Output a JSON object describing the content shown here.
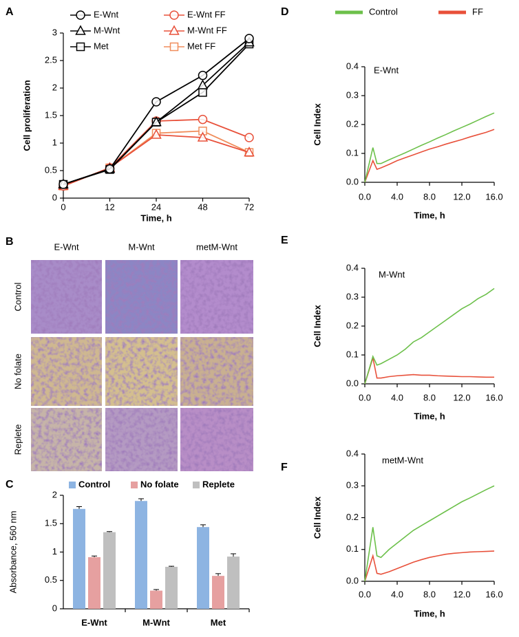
{
  "chart_data": [
    {
      "type": "line",
      "label": "A",
      "x_label": "Time, h",
      "y_label": "Cell proliferation",
      "categories": [
        "0",
        "12",
        "24",
        "48",
        "72"
      ],
      "ylim": [
        0,
        3
      ],
      "yticks": [
        0,
        0.5,
        1,
        1.5,
        2,
        2.5,
        3
      ],
      "legend": "top",
      "series": [
        {
          "name": "E-Wnt",
          "color": "#000000",
          "marker": "circle",
          "values": [
            0.25,
            0.53,
            1.75,
            2.23,
            2.9
          ]
        },
        {
          "name": "M-Wnt",
          "color": "#000000",
          "marker": "triangle",
          "values": [
            0.25,
            0.53,
            1.38,
            2.05,
            2.83
          ]
        },
        {
          "name": "Met",
          "color": "#000000",
          "marker": "square",
          "values": [
            0.25,
            0.52,
            1.38,
            1.92,
            2.8
          ]
        },
        {
          "name": "E-Wnt FF",
          "color": "#e8503a",
          "marker": "circle",
          "values": [
            0.22,
            0.55,
            1.4,
            1.43,
            1.1
          ]
        },
        {
          "name": "M-Wnt FF",
          "color": "#e8503a",
          "marker": "triangle",
          "values": [
            0.22,
            0.55,
            1.15,
            1.1,
            0.83
          ]
        },
        {
          "name": "Met FF",
          "color": "#f08c5a",
          "marker": "square",
          "values": [
            0.22,
            0.55,
            1.18,
            1.22,
            0.83
          ]
        }
      ]
    },
    {
      "type": "bar",
      "label": "C",
      "y_label": "Absorbance, 560 nm",
      "categories": [
        "E-Wnt",
        "M-Wnt",
        "Met"
      ],
      "ylim": [
        0,
        2
      ],
      "yticks": [
        0,
        0.5,
        1,
        1.5,
        2
      ],
      "legend": "top",
      "series": [
        {
          "name": "Control",
          "color": "#8db4e2",
          "values": [
            1.76,
            1.9,
            1.44
          ],
          "errors": [
            0.04,
            0.04,
            0.04
          ]
        },
        {
          "name": "No folate",
          "color": "#e6a0a0",
          "values": [
            0.91,
            0.32,
            0.58
          ],
          "errors": [
            0.02,
            0.02,
            0.04
          ]
        },
        {
          "name": "Replete",
          "color": "#bfbfbf",
          "values": [
            1.35,
            0.74,
            0.92
          ],
          "errors": [
            0.01,
            0.01,
            0.05
          ]
        }
      ]
    },
    {
      "type": "line",
      "label": "D",
      "annotation": "E-Wnt",
      "x_label": "Time, h",
      "y_label": "Cell Index",
      "legend": "top",
      "x": [
        0,
        1,
        1.5,
        2,
        3,
        4,
        5,
        6,
        7,
        8,
        9,
        10,
        11,
        12,
        13,
        14,
        15,
        16
      ],
      "xlim": [
        0,
        16
      ],
      "xticks": [
        {
          "value": 0,
          "label": "0.0"
        },
        {
          "value": 4,
          "label": "4.0"
        },
        {
          "value": 8,
          "label": "8.0"
        },
        {
          "value": 12,
          "label": "12.0"
        },
        {
          "value": 16,
          "label": "16.0"
        }
      ],
      "ylim": [
        0,
        0.4
      ],
      "yticks": [
        {
          "value": 0,
          "label": "0.0"
        },
        0.1,
        0.2,
        0.3,
        0.4
      ],
      "series": [
        {
          "name": "Control",
          "color": "#6cc04a",
          "values": [
            0,
            0.12,
            0.065,
            0.065,
            0.078,
            0.09,
            0.102,
            0.115,
            0.128,
            0.14,
            0.153,
            0.165,
            0.178,
            0.19,
            0.202,
            0.215,
            0.228,
            0.24
          ]
        },
        {
          "name": "FF",
          "color": "#e8503a",
          "values": [
            0,
            0.075,
            0.045,
            0.05,
            0.062,
            0.075,
            0.085,
            0.095,
            0.105,
            0.115,
            0.123,
            0.132,
            0.14,
            0.148,
            0.157,
            0.165,
            0.173,
            0.183
          ]
        }
      ]
    },
    {
      "type": "line",
      "label": "E",
      "annotation": "M-Wnt",
      "x_label": "Time, h",
      "y_label": "Cell Index",
      "x": [
        0,
        1,
        1.5,
        2,
        3,
        4,
        5,
        6,
        7,
        8,
        9,
        10,
        11,
        12,
        13,
        14,
        15,
        16
      ],
      "xlim": [
        0,
        16
      ],
      "xticks": [
        {
          "value": 0,
          "label": "0.0"
        },
        {
          "value": 4,
          "label": "4.0"
        },
        {
          "value": 8,
          "label": "8.0"
        },
        {
          "value": 12,
          "label": "12.0"
        },
        {
          "value": 16,
          "label": "16.0"
        }
      ],
      "ylim": [
        0,
        0.4
      ],
      "yticks": [
        {
          "value": 0,
          "label": "0.0"
        },
        0.1,
        0.2,
        0.3,
        0.4
      ],
      "series": [
        {
          "name": "Control",
          "color": "#6cc04a",
          "values": [
            0,
            0.095,
            0.065,
            0.07,
            0.085,
            0.1,
            0.12,
            0.145,
            0.16,
            0.18,
            0.2,
            0.22,
            0.24,
            0.26,
            0.275,
            0.295,
            0.31,
            0.33
          ]
        },
        {
          "name": "FF",
          "color": "#e8503a",
          "values": [
            0,
            0.09,
            0.02,
            0.02,
            0.025,
            0.028,
            0.03,
            0.032,
            0.03,
            0.03,
            0.028,
            0.027,
            0.026,
            0.025,
            0.025,
            0.024,
            0.023,
            0.023
          ]
        }
      ]
    },
    {
      "type": "line",
      "label": "F",
      "annotation": "metM-Wnt",
      "x_label": "Time, h",
      "y_label": "Cell Index",
      "x": [
        0,
        1,
        1.5,
        2,
        3,
        4,
        5,
        6,
        7,
        8,
        9,
        10,
        11,
        12,
        13,
        14,
        15,
        16
      ],
      "xlim": [
        0,
        16
      ],
      "xticks": [
        {
          "value": 0,
          "label": "0.0"
        },
        {
          "value": 4,
          "label": "4.0"
        },
        {
          "value": 8,
          "label": "8.0"
        },
        {
          "value": 12,
          "label": "12.0"
        },
        {
          "value": 16,
          "label": "16.0"
        }
      ],
      "ylim": [
        0,
        0.4
      ],
      "yticks": [
        {
          "value": 0,
          "label": "0.0"
        },
        0.1,
        0.2,
        0.3,
        0.4
      ],
      "series": [
        {
          "name": "Control",
          "color": "#6cc04a",
          "values": [
            0,
            0.17,
            0.08,
            0.075,
            0.1,
            0.12,
            0.14,
            0.16,
            0.175,
            0.19,
            0.205,
            0.22,
            0.235,
            0.25,
            0.262,
            0.275,
            0.288,
            0.3
          ]
        },
        {
          "name": "FF",
          "color": "#e8503a",
          "values": [
            0,
            0.08,
            0.025,
            0.022,
            0.03,
            0.04,
            0.05,
            0.06,
            0.068,
            0.075,
            0.08,
            0.085,
            0.088,
            0.09,
            0.092,
            0.093,
            0.094,
            0.095
          ]
        }
      ]
    }
  ],
  "image_panel": {
    "label": "B",
    "columns": [
      "E-Wnt",
      "M-Wnt",
      "metM-Wnt"
    ],
    "rows": [
      "Control",
      "No folate",
      "Replete"
    ]
  }
}
